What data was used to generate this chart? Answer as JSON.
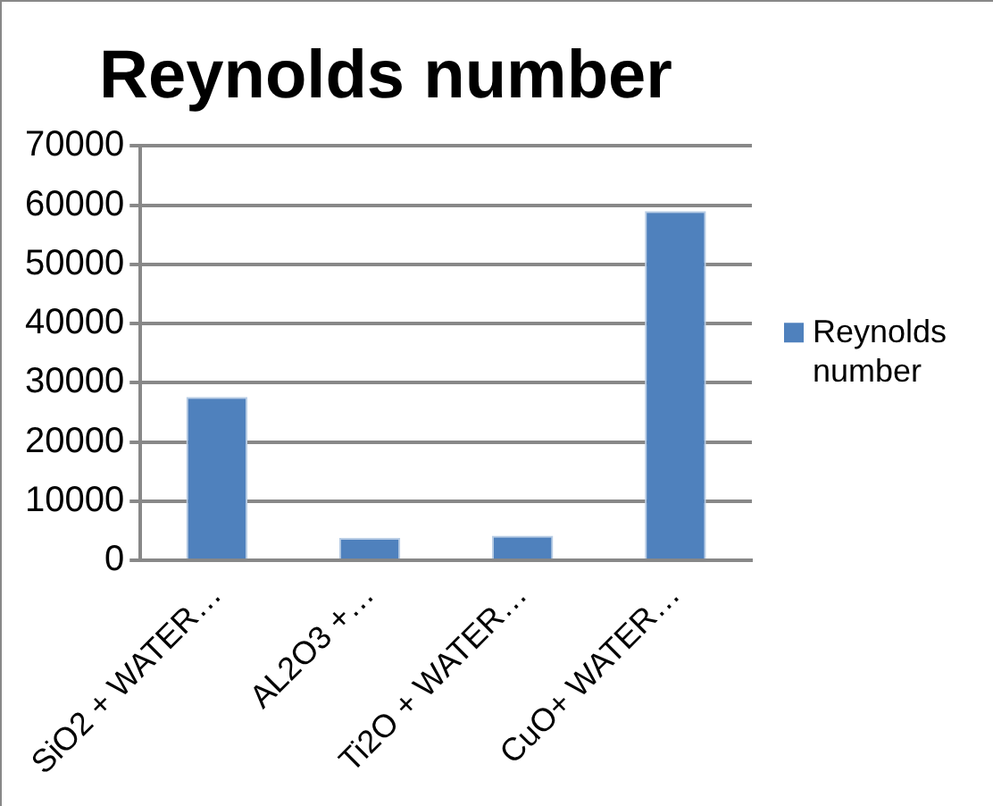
{
  "chart_data": {
    "type": "bar",
    "title": "Reynolds number",
    "categories": [
      "SiO2 + WATER…",
      "AL2O3 +…",
      "Ti2O + WATER…",
      "CuO+ WATER…"
    ],
    "series": [
      {
        "name": "Reynolds number",
        "color": "#4f81bd",
        "values": [
          27600,
          3800,
          4200,
          59000
        ]
      }
    ],
    "ylim": [
      0,
      70000
    ],
    "yticks": [
      0,
      10000,
      20000,
      30000,
      40000,
      50000,
      60000,
      70000
    ],
    "grid": "y",
    "legend": "right"
  }
}
